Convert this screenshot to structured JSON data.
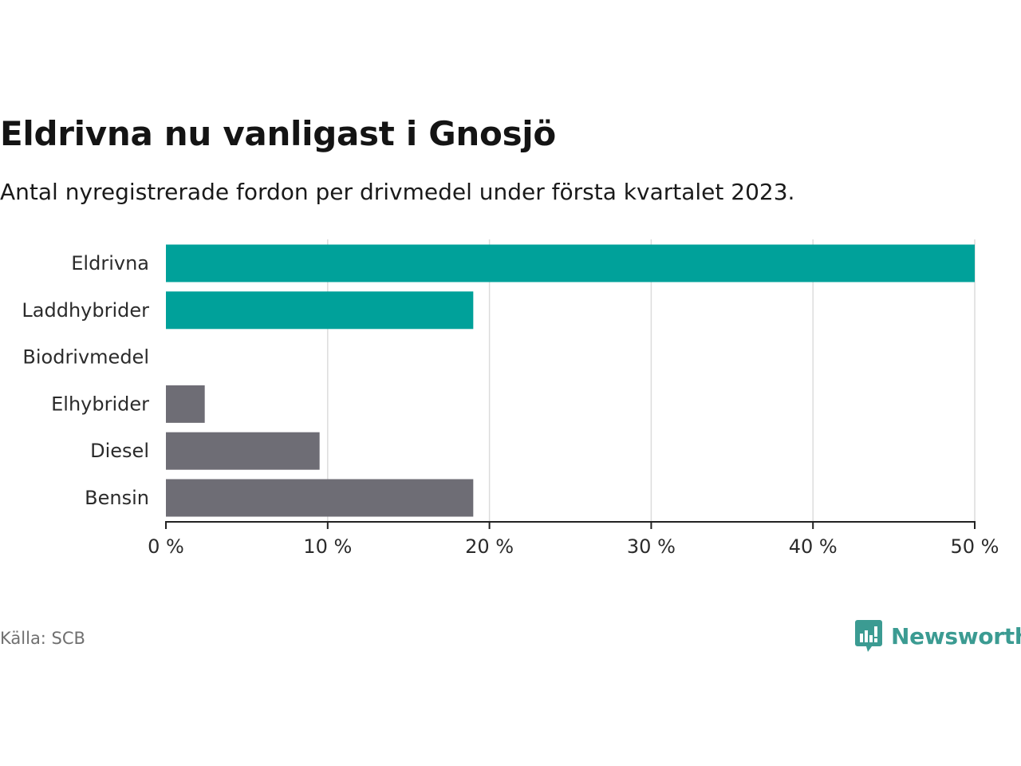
{
  "chart_data": {
    "type": "bar",
    "orientation": "horizontal",
    "title": "Eldrivna nu vanligast i Gnosjö",
    "subtitle": "Antal nyregistrerade fordon per drivmedel under första kvartalet 2023.",
    "categories": [
      "Eldrivna",
      "Laddhybrider",
      "Biodrivmedel",
      "Elhybrider",
      "Diesel",
      "Bensin"
    ],
    "values": [
      50.0,
      19.0,
      0.0,
      2.4,
      9.5,
      19.0
    ],
    "bar_colors": [
      "#00a19a",
      "#00a19a",
      "#00a19a",
      "#6e6d75",
      "#6e6d75",
      "#6e6d75"
    ],
    "xlim": [
      0,
      50
    ],
    "xticks": [
      0,
      10,
      20,
      30,
      40,
      50
    ],
    "xtick_labels": [
      "0 %",
      "10 %",
      "20 %",
      "30 %",
      "40 %",
      "50 %"
    ],
    "grid": true,
    "legend": "none"
  },
  "source": "Källa: SCB",
  "brand": {
    "name": "Newsworthy",
    "color": "#3b9b92",
    "icon": "bar-chart-bubble-icon"
  }
}
